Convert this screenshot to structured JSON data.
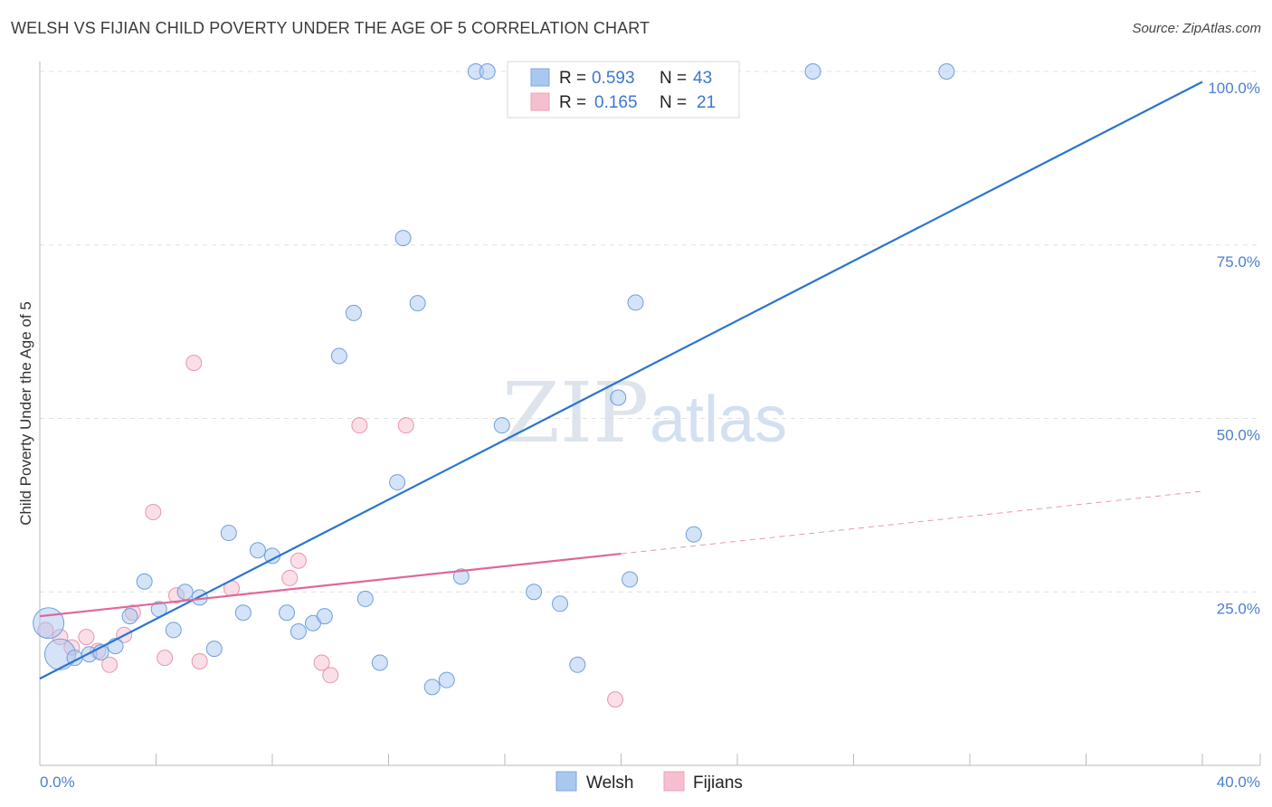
{
  "title": "WELSH VS FIJIAN CHILD POVERTY UNDER THE AGE OF 5 CORRELATION CHART",
  "source": "Source: ZipAtlas.com",
  "watermark": {
    "zip": "ZIP",
    "atlas": "atlas"
  },
  "colors": {
    "welsh": "#a9c8f0",
    "welsh_line": "#2b74cf",
    "fijians": "#f6bfd0",
    "fijians_line": "#e0679a",
    "tick_text": "#4a7fd0"
  },
  "legend": {
    "rows": [
      {
        "r_label": "R =",
        "r_value": "0.593",
        "n_label": "N =",
        "n_value": "43"
      },
      {
        "r_label": "R =",
        "r_value": "0.165",
        "n_label": "N =",
        "n_value": "21"
      }
    ]
  },
  "bottom_legend": [
    "Welsh",
    "Fijians"
  ],
  "chart_data": {
    "type": "scatter",
    "title": "WELSH VS FIJIAN CHILD POVERTY UNDER THE AGE OF 5 CORRELATION CHART",
    "xlabel": "",
    "ylabel": "Child Poverty Under the Age of 5",
    "xlim": [
      0,
      40
    ],
    "ylim": [
      0,
      102
    ],
    "x_tick_labels": [
      "0.0%",
      "40.0%"
    ],
    "y_ticks": [
      25,
      50,
      75,
      100
    ],
    "y_tick_labels": [
      "25.0%",
      "50.0%",
      "75.0%",
      "100.0%"
    ],
    "grid": true,
    "series": [
      {
        "name": "Welsh",
        "r": 0.593,
        "n": 43,
        "trend": {
          "x0": 0,
          "y0": 12.5,
          "x1": 40,
          "y1": 98.5
        },
        "points": [
          [
            0.3,
            20.5,
            "large"
          ],
          [
            0.7,
            16,
            "large"
          ],
          [
            1.2,
            15.5
          ],
          [
            1.7,
            16
          ],
          [
            2.1,
            16.3
          ],
          [
            2.6,
            17.2
          ],
          [
            3.1,
            21.5
          ],
          [
            3.6,
            26.5
          ],
          [
            4.1,
            22.5
          ],
          [
            4.6,
            19.5
          ],
          [
            5.0,
            25.0
          ],
          [
            5.5,
            24.2
          ],
          [
            6.0,
            16.8
          ],
          [
            6.5,
            33.5
          ],
          [
            7.0,
            22.0
          ],
          [
            7.5,
            31.0
          ],
          [
            8.0,
            30.2
          ],
          [
            8.5,
            22.0
          ],
          [
            8.9,
            19.3
          ],
          [
            9.4,
            20.5
          ],
          [
            9.8,
            21.5
          ],
          [
            10.3,
            59.0
          ],
          [
            10.8,
            65.2
          ],
          [
            11.2,
            24.0
          ],
          [
            11.7,
            14.8
          ],
          [
            12.3,
            40.8
          ],
          [
            12.5,
            76.0
          ],
          [
            13.0,
            66.6
          ],
          [
            13.5,
            11.3
          ],
          [
            14.0,
            12.3
          ],
          [
            14.5,
            27.2
          ],
          [
            15.0,
            100.0
          ],
          [
            15.4,
            100.0
          ],
          [
            15.9,
            49.0
          ],
          [
            17.0,
            25.0
          ],
          [
            17.9,
            23.3
          ],
          [
            18.5,
            14.5
          ],
          [
            19.9,
            53.0
          ],
          [
            20.3,
            26.8
          ],
          [
            20.5,
            66.7
          ],
          [
            22.5,
            33.3
          ],
          [
            26.6,
            100.0
          ],
          [
            31.2,
            100.0
          ]
        ]
      },
      {
        "name": "Fijians",
        "r": 0.165,
        "n": 21,
        "trend": {
          "x0": 0,
          "y0": 21.5,
          "x1": 20,
          "y1": 30.5,
          "dashed_to": {
            "x": 40,
            "y": 39.5
          }
        },
        "points": [
          [
            0.2,
            19.5
          ],
          [
            0.7,
            18.5
          ],
          [
            1.1,
            17.0
          ],
          [
            1.6,
            18.5
          ],
          [
            2.0,
            16.5
          ],
          [
            2.4,
            14.5
          ],
          [
            2.9,
            18.8
          ],
          [
            3.2,
            22.0
          ],
          [
            3.9,
            36.5
          ],
          [
            4.3,
            15.5
          ],
          [
            4.7,
            24.5
          ],
          [
            5.3,
            58.0
          ],
          [
            5.5,
            15.0
          ],
          [
            6.6,
            25.5
          ],
          [
            8.6,
            27.0
          ],
          [
            8.9,
            29.5
          ],
          [
            9.7,
            14.8
          ],
          [
            10.0,
            13.0
          ],
          [
            11.0,
            49.0
          ],
          [
            12.6,
            49.0
          ],
          [
            19.8,
            9.5
          ]
        ]
      }
    ]
  }
}
